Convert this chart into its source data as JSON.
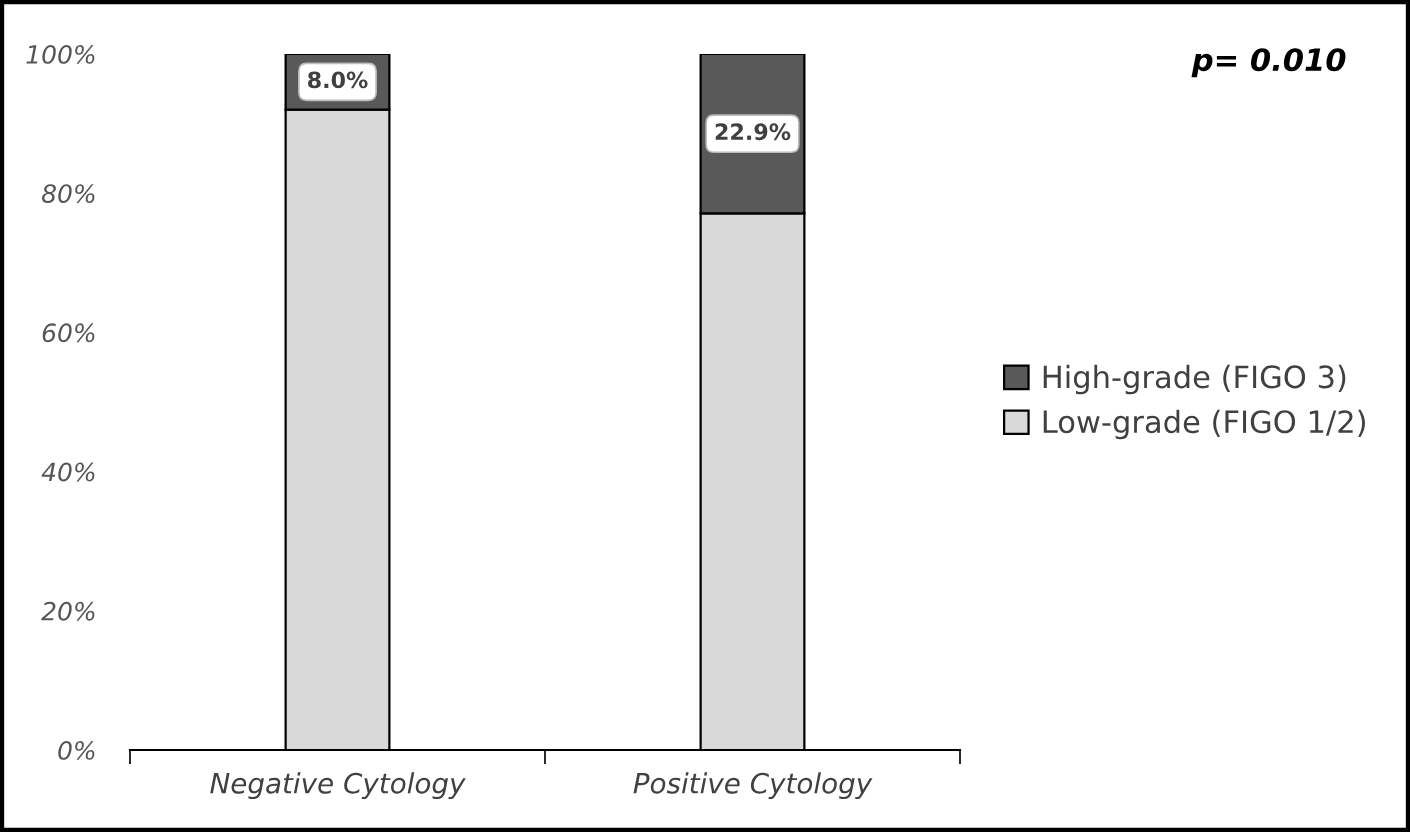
{
  "chart_data": {
    "type": "bar",
    "stacked": true,
    "categories": [
      "Negative Cytology",
      "Positive Cytology"
    ],
    "series": [
      {
        "name": "Low-grade (FIGO 1/2)",
        "color": "#d9d9d9",
        "values": [
          92.0,
          77.1
        ]
      },
      {
        "name": "High-grade (FIGO 3)",
        "color": "#595959",
        "values": [
          8.0,
          22.9
        ],
        "value_labels": [
          "8.0%",
          "22.9%"
        ]
      }
    ],
    "ylim": [
      0,
      100
    ],
    "yticks": [
      {
        "value": 0,
        "label": "0%"
      },
      {
        "value": 20,
        "label": "20%"
      },
      {
        "value": 40,
        "label": "40%"
      },
      {
        "value": 60,
        "label": "60%"
      },
      {
        "value": 80,
        "label": "80%"
      },
      {
        "value": 100,
        "label": "100%"
      }
    ],
    "annotations": [
      "p= 0.010"
    ],
    "legend": "right",
    "grid": false
  }
}
